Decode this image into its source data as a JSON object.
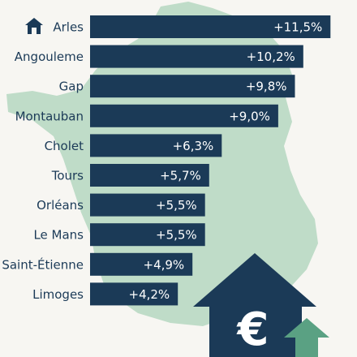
{
  "chart_data": {
    "type": "bar",
    "orientation": "horizontal",
    "categories": [
      "Arles",
      "Angouleme",
      "Gap",
      "Montauban",
      "Cholet",
      "Tours",
      "Orléans",
      "Le Mans",
      "Saint-Étienne",
      "Limoges"
    ],
    "values": [
      11.5,
      10.2,
      9.8,
      9.0,
      6.3,
      5.7,
      5.5,
      5.5,
      4.9,
      4.2
    ],
    "labels": [
      "+11,5%",
      "+10,2%",
      "+9,8%",
      "+9,0%",
      "+6,3%",
      "+5,7%",
      "+5,5%",
      "+5,5%",
      "+4,9%",
      "+4,2%"
    ],
    "xlim": [
      0,
      11.8
    ],
    "grid": false,
    "legend": "none",
    "highlight_icon": "home-icon",
    "decorations": [
      "france-map-silhouette",
      "house-euro-icon",
      "up-arrow-icon"
    ]
  },
  "colors": {
    "bar": "#1b3a57",
    "text": "#1b3a57",
    "background": "#f7f6f2",
    "map": "#bfdcc8",
    "arrow": "#5aa183"
  }
}
